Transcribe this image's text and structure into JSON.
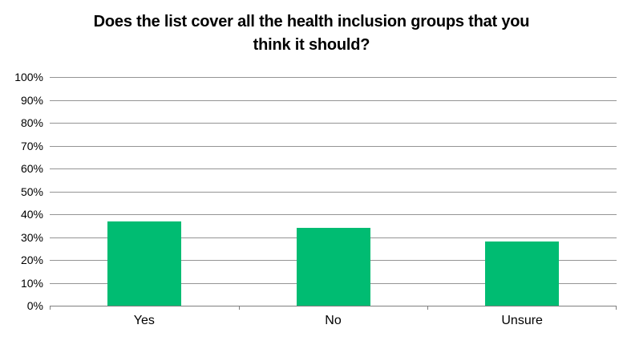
{
  "chart_data": {
    "type": "bar",
    "title": "Does the list cover all the health inclusion groups that you\nthink it should?",
    "categories": [
      "Yes",
      "No",
      "Unsure"
    ],
    "values": [
      37,
      34,
      28
    ],
    "value_unit": "%",
    "xlabel": "",
    "ylabel": "",
    "ylim": [
      0,
      100
    ],
    "ytick_step": 10,
    "ytick_labels": [
      "0%",
      "10%",
      "20%",
      "30%",
      "40%",
      "50%",
      "60%",
      "70%",
      "80%",
      "90%",
      "100%"
    ],
    "grid": true,
    "legend": false,
    "colors": {
      "bar": "#00BC72",
      "gridline": "#949494",
      "axis": "#7f7f7f",
      "text": "#000000"
    }
  }
}
